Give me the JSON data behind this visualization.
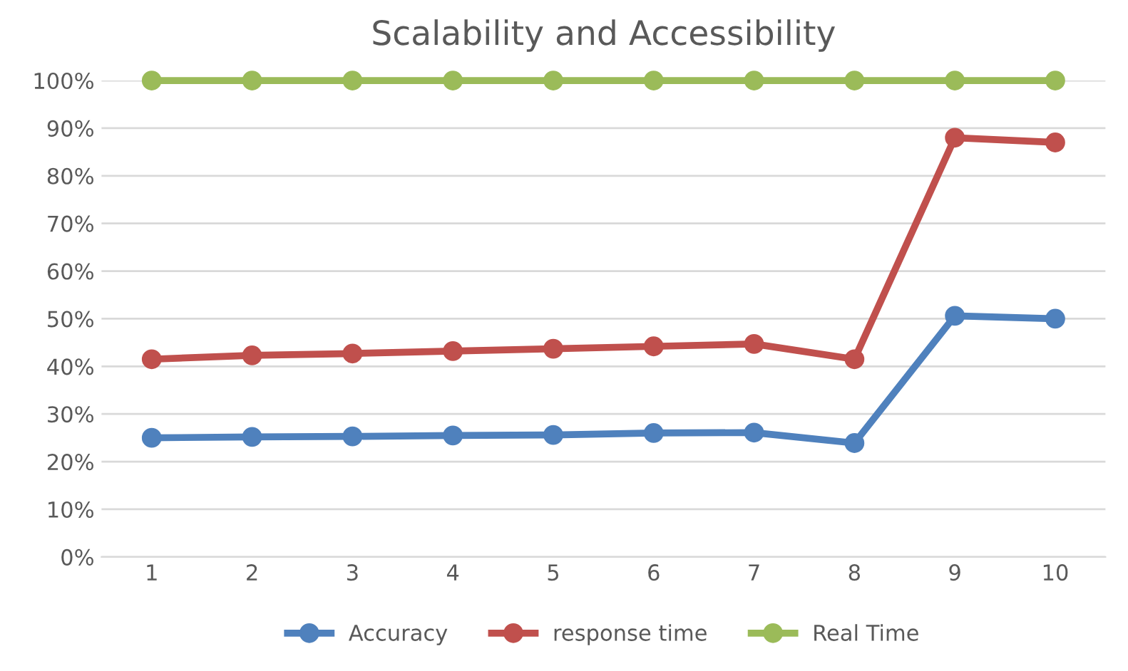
{
  "chart_data": {
    "type": "line",
    "title": "Scalability and Accessibility",
    "categories": [
      "1",
      "2",
      "3",
      "4",
      "5",
      "6",
      "7",
      "8",
      "9",
      "10"
    ],
    "series": [
      {
        "name": "Accuracy",
        "color": "#4f81bd",
        "values": [
          0.25,
          0.252,
          0.253,
          0.255,
          0.256,
          0.26,
          0.261,
          0.239,
          0.506,
          0.5
        ]
      },
      {
        "name": "response time",
        "color": "#c0504d",
        "values": [
          0.415,
          0.423,
          0.427,
          0.432,
          0.437,
          0.442,
          0.447,
          0.415,
          0.88,
          0.87
        ]
      },
      {
        "name": "Real Time",
        "color": "#9bbb59",
        "values": [
          1,
          1,
          1,
          1,
          1,
          1,
          1,
          1,
          1,
          1
        ]
      }
    ],
    "ylim": [
      0,
      1
    ],
    "yticks": [
      {
        "value": 0,
        "label": "0%"
      },
      {
        "value": 0.1,
        "label": "10%"
      },
      {
        "value": 0.2,
        "label": "20%"
      },
      {
        "value": 0.3,
        "label": "30%"
      },
      {
        "value": 0.4,
        "label": "40%"
      },
      {
        "value": 0.5,
        "label": "50%"
      },
      {
        "value": 0.6,
        "label": "60%"
      },
      {
        "value": 0.7,
        "label": "70%"
      },
      {
        "value": 0.8,
        "label": "80%"
      },
      {
        "value": 0.9,
        "label": "90%"
      },
      {
        "value": 1,
        "label": "100%"
      }
    ],
    "grid": "y",
    "legend": "bottom",
    "marker": "circle",
    "line_style": "solid"
  }
}
